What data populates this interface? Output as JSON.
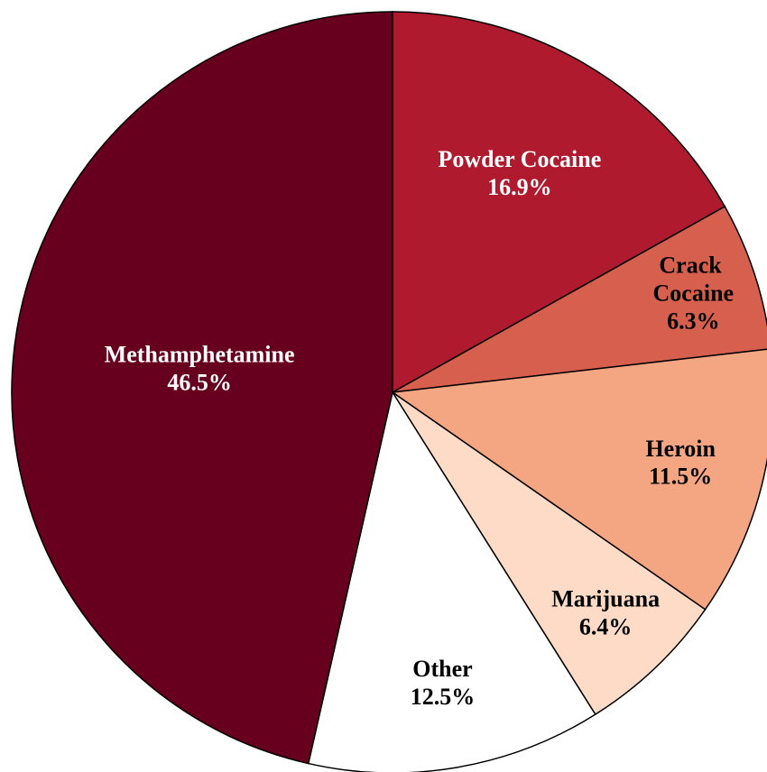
{
  "chart_data": {
    "type": "pie",
    "categories": [
      "Powder Cocaine",
      "Crack Cocaine",
      "Heroin",
      "Marijuana",
      "Other",
      "Methamphetamine"
    ],
    "values": [
      16.9,
      6.3,
      11.5,
      6.4,
      12.5,
      46.5
    ],
    "value_labels": [
      "16.9%",
      "6.3%",
      "11.5%",
      "6.4%",
      "12.5%",
      "46.5%"
    ],
    "colors": [
      "#b01a2e",
      "#d6604d",
      "#f4a582",
      "#fddbc7",
      "#ffffff",
      "#67001f"
    ]
  }
}
